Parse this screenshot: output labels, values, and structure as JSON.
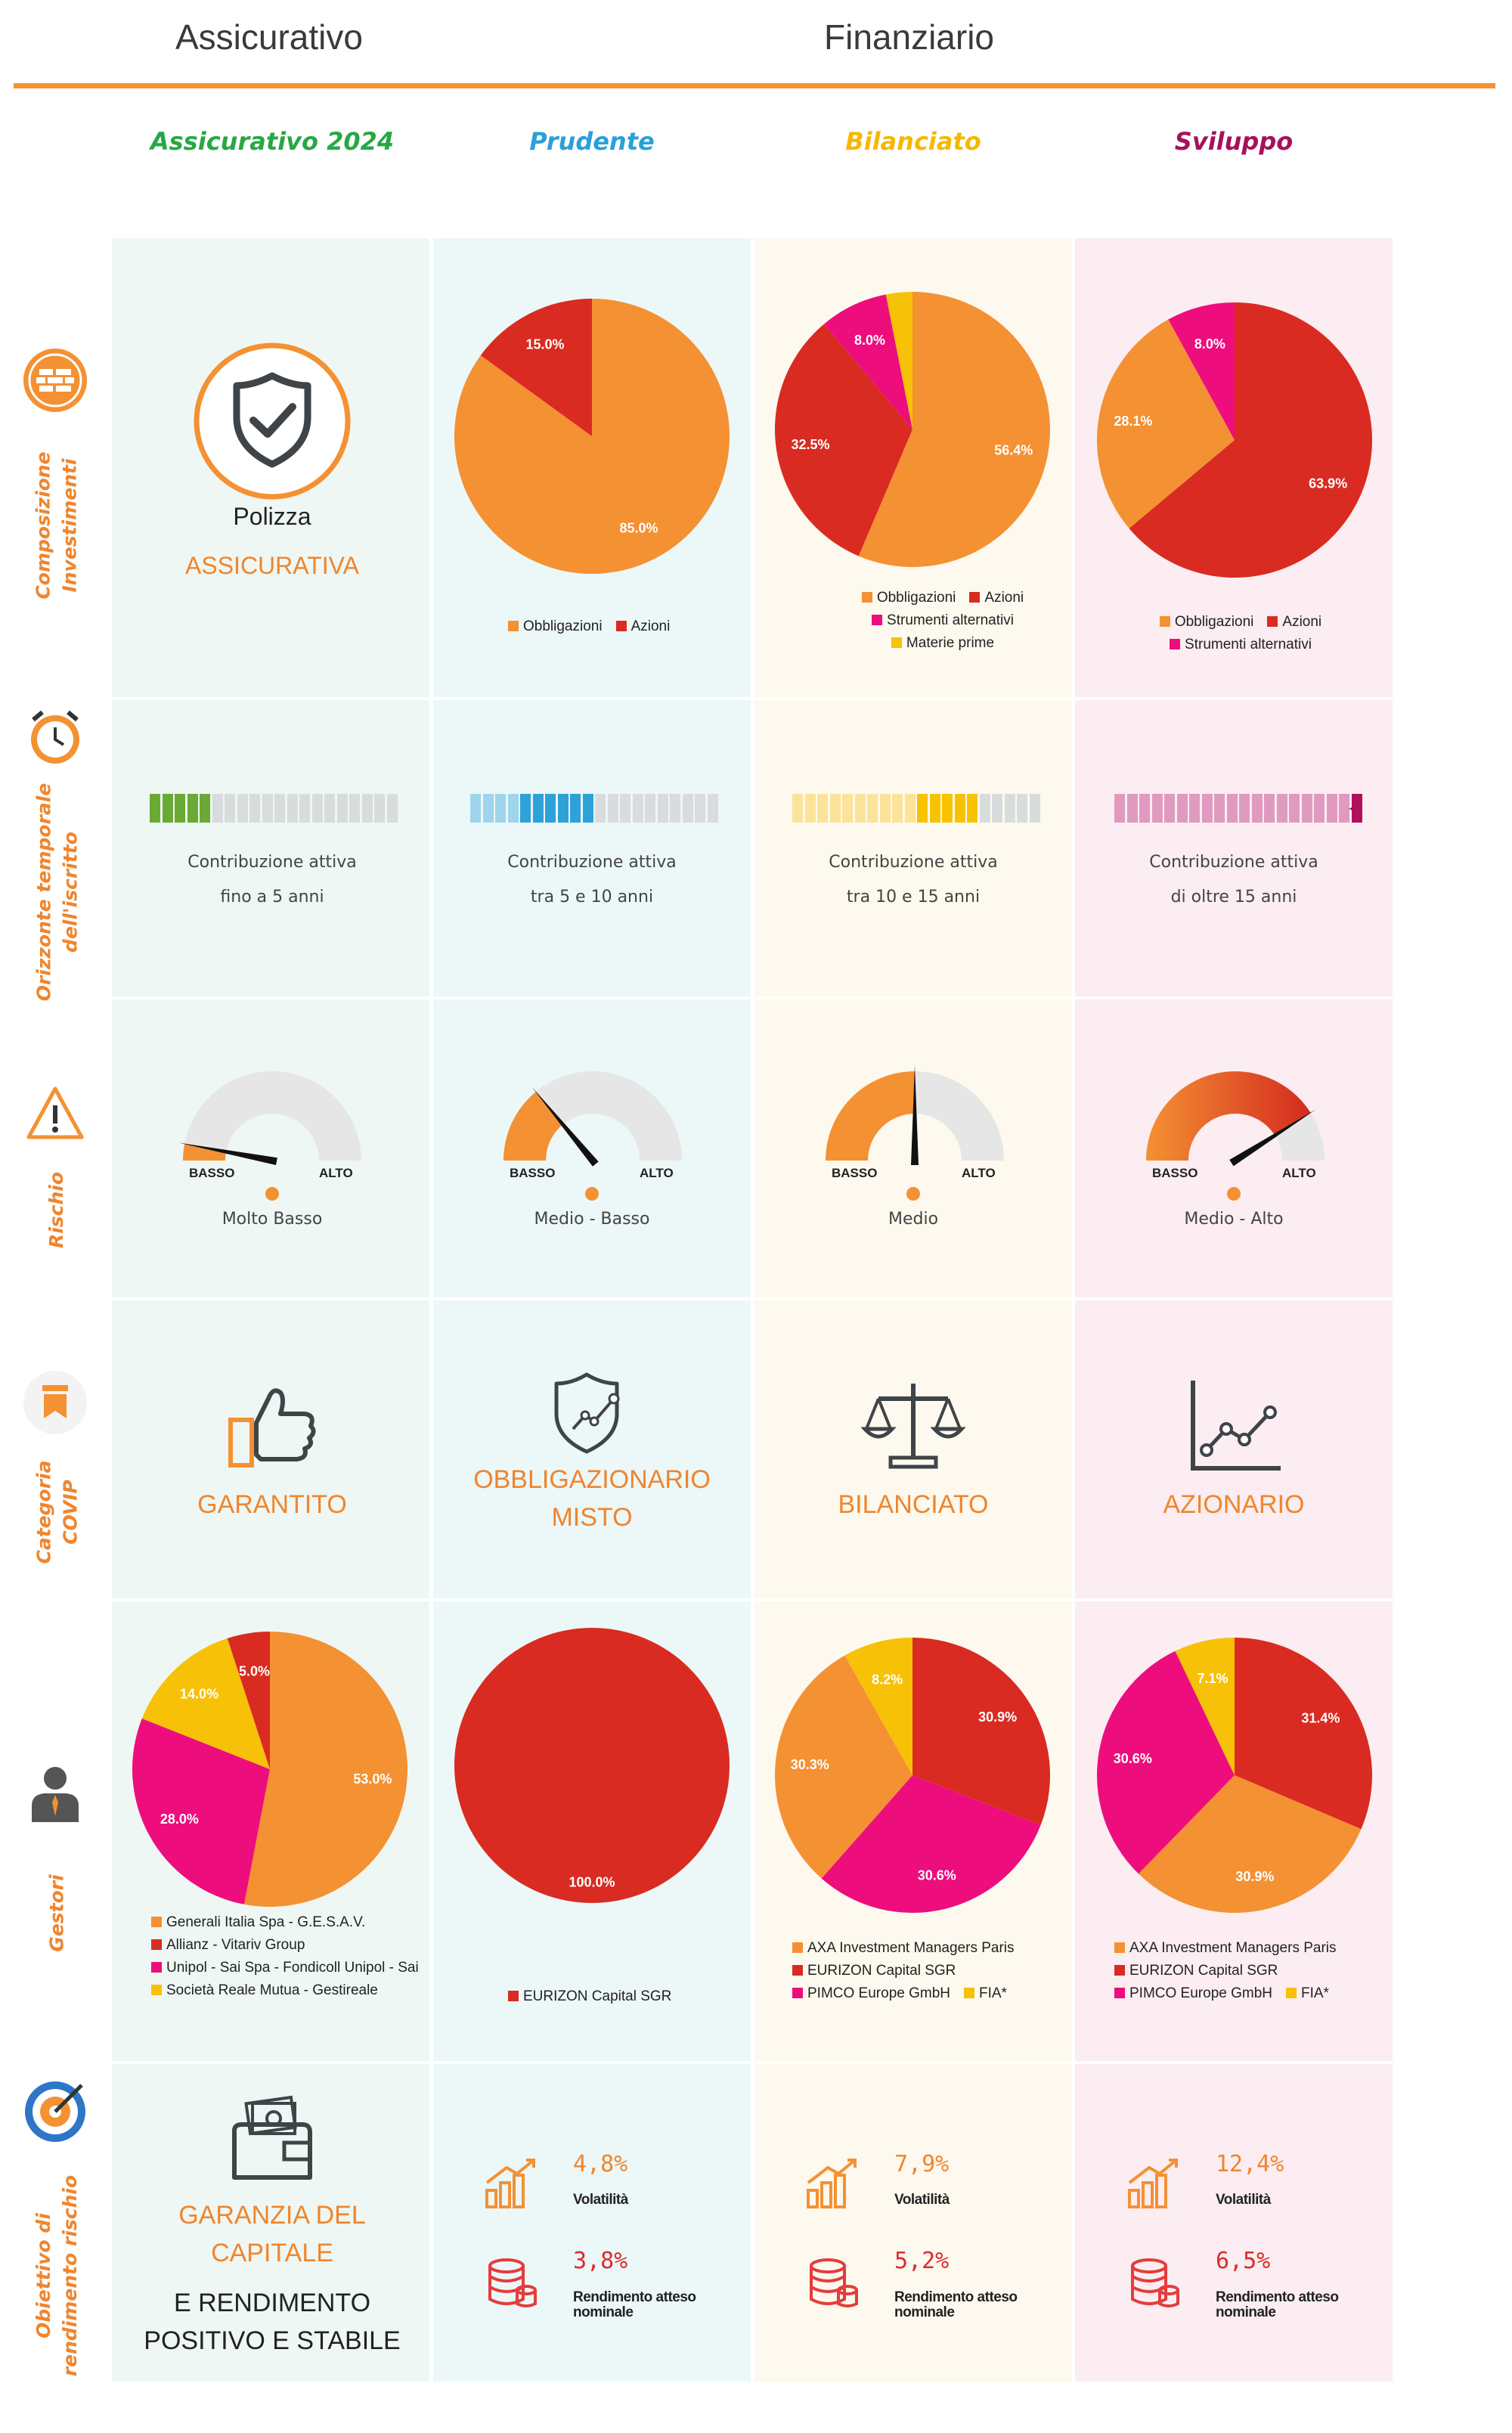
{
  "header": {
    "left": "Assicurativo",
    "right": "Finanziario"
  },
  "products": [
    {
      "name": "Assicurativo 2024",
      "color": "#27a844"
    },
    {
      "name": "Prudente",
      "color": "#2aa0d8"
    },
    {
      "name": "Bilanciato",
      "color": "#f5b800"
    },
    {
      "name": "Sviluppo",
      "color": "#a8105e"
    }
  ],
  "column_bg": [
    "#eef7f3",
    "#ecf7f8",
    "#fdf9ee",
    "#fbedf1"
  ],
  "rows": {
    "composizione": "Composizione\nInvestimenti",
    "orizzonte": "Orizzonte temporale\ndell'iscritto",
    "rischio": "Rischio",
    "categoria": "Categoria\nCOVIP",
    "gestori": "Gestori",
    "obiettivo": "Obiettivo di\nrendimento rischio"
  },
  "polizza": {
    "line1": "Polizza",
    "line2": "ASSICURATIVA"
  },
  "horizon": [
    {
      "line1": "Contribuzione attiva",
      "line2": "fino a 5 anni"
    },
    {
      "line1": "Contribuzione attiva",
      "line2": "tra 5 e 10 anni"
    },
    {
      "line1": "Contribuzione attiva",
      "line2": "tra 10 e 15 anni"
    },
    {
      "line1": "Contribuzione attiva",
      "line2": "di oltre 15 anni"
    }
  ],
  "risk": {
    "low_label": "BASSO",
    "high_label": "ALTO",
    "levels": [
      {
        "label": "Molto Basso",
        "value": 0.06
      },
      {
        "label": "Medio - Basso",
        "value": 0.28
      },
      {
        "label": "Medio",
        "value": 0.5
      },
      {
        "label": "Medio - Alto",
        "value": 0.82
      }
    ]
  },
  "categories": [
    {
      "lines": [
        "GARANTITO"
      ]
    },
    {
      "lines": [
        "OBBLIGAZIONARIO",
        "MISTO"
      ]
    },
    {
      "lines": [
        "BILANCIATO"
      ]
    },
    {
      "lines": [
        "AZIONARIO"
      ]
    }
  ],
  "objective": {
    "guarantee": {
      "line1": "GARANZIA DEL",
      "line2": "CAPITALE",
      "line3": "E RENDIMENTO",
      "line4": "POSITIVO E STABILE"
    },
    "volatility_label": "Volatilità",
    "return_label_1": "Rendimento atteso",
    "return_label_2": "nominale",
    "funds": [
      {
        "volatility": "4,8%",
        "return": "3,8%"
      },
      {
        "volatility": "7,9%",
        "return": "5,2%"
      },
      {
        "volatility": "12,4%",
        "return": "6,5%"
      }
    ]
  },
  "colors": {
    "orange": "#f49133",
    "red": "#d92b21",
    "pink": "#ee0d7d",
    "yellow": "#f6c107"
  },
  "chart_data": [
    {
      "type": "pie",
      "id": "composizione-prudente",
      "categories": [
        "Obbligazioni",
        "Azioni"
      ],
      "values": [
        85.0,
        15.0
      ],
      "labels": [
        "85.0%",
        "15.0%"
      ],
      "colors": [
        "#f49133",
        "#d92b21"
      ]
    },
    {
      "type": "pie",
      "id": "composizione-bilanciato",
      "categories": [
        "Obbligazioni",
        "Azioni",
        "Strumenti alternativi",
        "Materie prime"
      ],
      "values": [
        56.4,
        32.5,
        8.0,
        3.1
      ],
      "labels": [
        "56.4%",
        "32.5%",
        "8.0%",
        ""
      ],
      "colors": [
        "#f49133",
        "#d92b21",
        "#ee0d7d",
        "#f6c107"
      ]
    },
    {
      "type": "pie",
      "id": "composizione-sviluppo",
      "categories": [
        "Obbligazioni",
        "Azioni",
        "Strumenti alternativi"
      ],
      "values": [
        28.1,
        63.9,
        8.0
      ],
      "order": [
        "Azioni",
        "Obbligazioni",
        "Strumenti alternativi"
      ],
      "labels": [
        "28.1%",
        "63.9%",
        "8.0%"
      ],
      "colors": [
        "#f49133",
        "#d92b21",
        "#ee0d7d"
      ]
    },
    {
      "type": "pie",
      "id": "gestori-assicurativo",
      "categories": [
        "Generali Italia Spa - G.E.S.A.V.",
        "Allianz - Vitariv Group",
        "Unipol - Sai Spa - Fondicoll Unipol - Sai",
        "Società Reale Mutua - Gestireale"
      ],
      "values": [
        53.0,
        5.0,
        28.0,
        14.0
      ],
      "order": [
        "Generali Italia Spa - G.E.S.A.V.",
        "Unipol - Sai Spa - Fondicoll Unipol - Sai",
        "Società Reale Mutua - Gestireale",
        "Allianz - Vitariv Group"
      ],
      "labels": [
        "53.0%",
        "5.0%",
        "28.0%",
        "14.0%"
      ],
      "colors": [
        "#f49133",
        "#d92b21",
        "#ee0d7d",
        "#f6c107"
      ]
    },
    {
      "type": "pie",
      "id": "gestori-prudente",
      "categories": [
        "EURIZON Capital SGR"
      ],
      "values": [
        100.0
      ],
      "labels": [
        "100.0%"
      ],
      "colors": [
        "#d92b21"
      ]
    },
    {
      "type": "pie",
      "id": "gestori-bilanciato",
      "categories": [
        "AXA Investment Managers Paris",
        "EURIZON Capital SGR",
        "PIMCO Europe GmbH",
        "FIA*"
      ],
      "values": [
        30.3,
        30.9,
        30.6,
        8.2
      ],
      "order": [
        "EURIZON Capital SGR",
        "PIMCO Europe GmbH",
        "AXA Investment Managers Paris",
        "FIA*"
      ],
      "labels": [
        "30.3%",
        "30.9%",
        "30.6%",
        "8.2%"
      ],
      "colors": [
        "#f49133",
        "#d92b21",
        "#ee0d7d",
        "#f6c107"
      ]
    },
    {
      "type": "pie",
      "id": "gestori-sviluppo",
      "categories": [
        "AXA Investment Managers Paris",
        "EURIZON Capital SGR",
        "PIMCO Europe GmbH",
        "FIA*"
      ],
      "values": [
        30.9,
        31.4,
        30.6,
        7.1
      ],
      "order": [
        "EURIZON Capital SGR",
        "AXA Investment Managers Paris",
        "PIMCO Europe GmbH",
        "FIA*"
      ],
      "labels": [
        "30.9%",
        "31.4%",
        "30.6%",
        "7.1%"
      ],
      "colors": [
        "#f49133",
        "#d92b21",
        "#ee0d7d",
        "#f6c107"
      ]
    }
  ],
  "horizon_bars": [
    {
      "filled": 5,
      "total": 20,
      "light": "#a9d68c",
      "dark": "#6aaa34"
    },
    {
      "filled": 10,
      "total": 20,
      "light": "#9fd4ec",
      "dark": "#2ea2d8"
    },
    {
      "filled": 15,
      "total": 20,
      "light": "#fbe39a",
      "dark": "#f7c300"
    },
    {
      "filled": 20,
      "total": 20,
      "light": "#e09ac0",
      "dark": "#b1105f"
    }
  ]
}
